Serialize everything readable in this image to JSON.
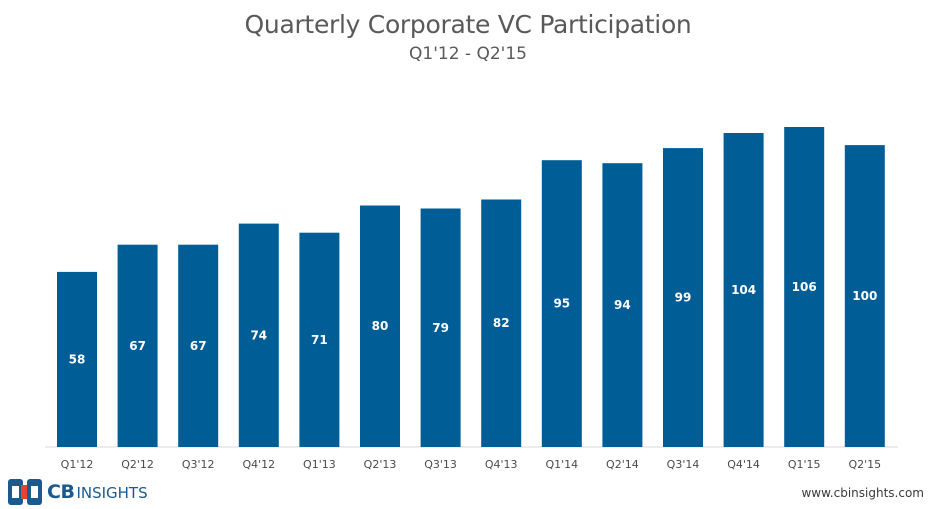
{
  "chart_data": {
    "type": "bar",
    "title": "Quarterly Corporate VC Participation",
    "subtitle": "Q1'12 - Q2'15",
    "categories": [
      "Q1'12",
      "Q2'12",
      "Q3'12",
      "Q4'12",
      "Q1'13",
      "Q2'13",
      "Q3'13",
      "Q4'13",
      "Q1'14",
      "Q2'14",
      "Q3'14",
      "Q4'14",
      "Q1'15",
      "Q2'15"
    ],
    "values": [
      58,
      67,
      67,
      74,
      71,
      80,
      79,
      82,
      95,
      94,
      99,
      104,
      106,
      100
    ],
    "bar_color": "#005d96",
    "xlabel": "",
    "ylabel": "",
    "ylim": [
      0,
      106
    ],
    "grid": false,
    "legend": "none"
  },
  "branding": {
    "logo_cb": "CB",
    "logo_insights": "INSIGHTS",
    "website": "www.cbinsights.com",
    "logo_colors": [
      "#1a5a8e",
      "#e8432e"
    ]
  }
}
